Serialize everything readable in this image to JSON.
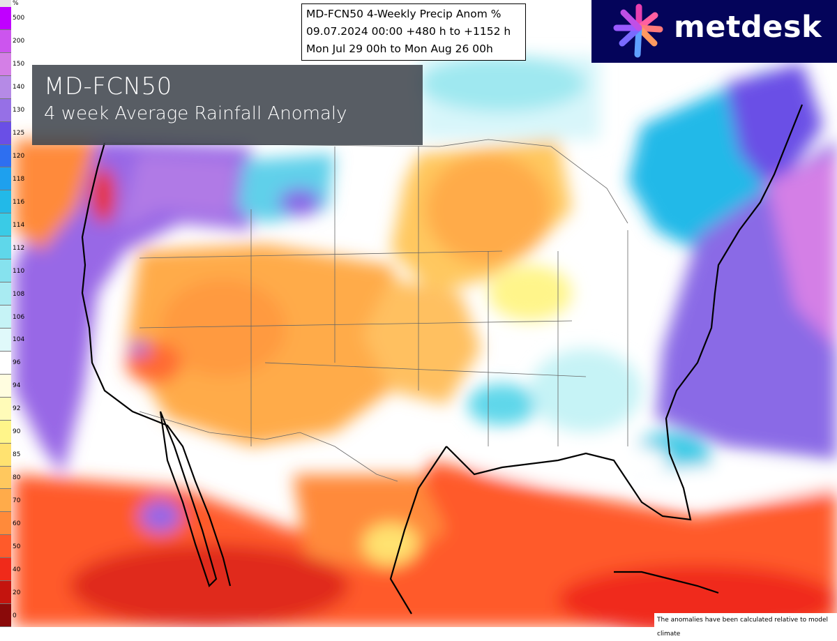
{
  "header": {
    "lines": [
      "MD-FCN50 4-Weekly Precip Anom %",
      "09.07.2024 00:00 +480 h to +1152 h",
      "Mon Jul 29 00h to Mon Aug 26 00h"
    ]
  },
  "overlay": {
    "title": "MD-FCN50",
    "subtitle": "4 week Average Rainfall Anomaly"
  },
  "logo": {
    "text": "metdesk",
    "background": "#04045a",
    "icon": "starburst-logo-icon"
  },
  "colorbar": {
    "unit": "%",
    "levels": [
      {
        "label": "500",
        "color": "#c000ff"
      },
      {
        "label": "200",
        "color": "#cc55ee"
      },
      {
        "label": "150",
        "color": "#d47fe6"
      },
      {
        "label": "140",
        "color": "#b58ae6"
      },
      {
        "label": "130",
        "color": "#9670e6"
      },
      {
        "label": "125",
        "color": "#6a4fe6"
      },
      {
        "label": "120",
        "color": "#2e6ff0"
      },
      {
        "label": "118",
        "color": "#1ea0ee"
      },
      {
        "label": "116",
        "color": "#22b9e8"
      },
      {
        "label": "114",
        "color": "#3acbe6"
      },
      {
        "label": "112",
        "color": "#5fd7ea"
      },
      {
        "label": "110",
        "color": "#86e2ee"
      },
      {
        "label": "108",
        "color": "#a9ebf2"
      },
      {
        "label": "106",
        "color": "#c6f3f6"
      },
      {
        "label": "104",
        "color": "#e0f9fa"
      },
      {
        "label": "96",
        "color": "#ffffff"
      },
      {
        "label": "94",
        "color": "#fffde0"
      },
      {
        "label": "92",
        "color": "#fffbb8"
      },
      {
        "label": "90",
        "color": "#fff58a"
      },
      {
        "label": "85",
        "color": "#ffe270"
      },
      {
        "label": "80",
        "color": "#ffc85e"
      },
      {
        "label": "70",
        "color": "#ffab4a"
      },
      {
        "label": "60",
        "color": "#ff8a3a"
      },
      {
        "label": "50",
        "color": "#ff5a2a"
      },
      {
        "label": "40",
        "color": "#f02a1a"
      },
      {
        "label": "20",
        "color": "#c4140e"
      },
      {
        "label": "0",
        "color": "#8a0a0a"
      }
    ]
  },
  "footnote": "The anomalies have been calculated relative to model climate"
}
